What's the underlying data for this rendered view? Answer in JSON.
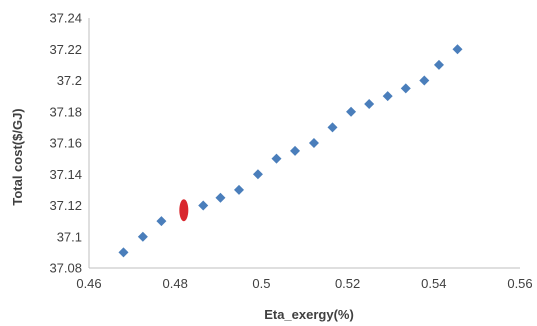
{
  "chart_data": {
    "type": "scatter",
    "title": "",
    "xlabel": "Eta_exergy(%)",
    "ylabel": "Total cost($/GJ)",
    "xlim": [
      0.46,
      0.56
    ],
    "ylim": [
      37.08,
      37.24
    ],
    "xticks": [
      "0.46",
      "0.48",
      "0.5",
      "0.52",
      "0.54",
      "0.56"
    ],
    "yticks": [
      "37.08",
      "37.1",
      "37.12",
      "37.14",
      "37.16",
      "37.18",
      "37.2",
      "37.22",
      "37.24"
    ],
    "grid": false,
    "legend": "none",
    "series": [
      {
        "marker": "diamond",
        "color": "#4a7ebb",
        "x": [
          0.468,
          0.4725,
          0.4768,
          0.4865,
          0.4905,
          0.4948,
          0.4992,
          0.5035,
          0.5078,
          0.5122,
          0.5165,
          0.5208,
          0.525,
          0.5293,
          0.5335,
          0.5378,
          0.5412,
          0.5455
        ],
        "y": [
          37.09,
          37.1,
          37.11,
          37.12,
          37.125,
          37.13,
          37.14,
          37.15,
          37.155,
          37.16,
          37.17,
          37.18,
          37.185,
          37.19,
          37.195,
          37.2,
          37.21,
          37.22
        ]
      },
      {
        "marker": "ellipse",
        "color": "#d9272e",
        "x": [
          0.482
        ],
        "y": [
          37.117
        ]
      }
    ]
  }
}
